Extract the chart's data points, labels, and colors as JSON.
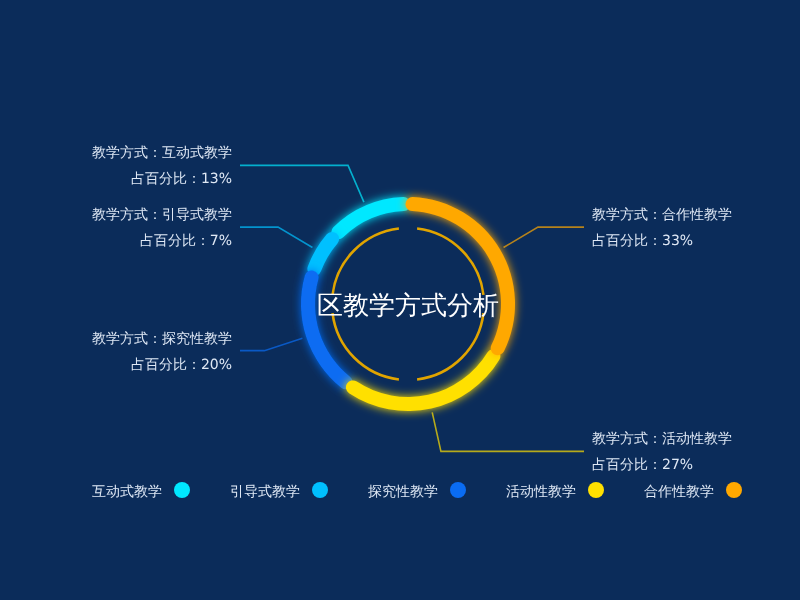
{
  "chart_data": {
    "type": "donut",
    "title": "区教学方式分析",
    "categories": [
      "互动式教学",
      "引导式教学",
      "探究性教学",
      "活动性教学",
      "合作性教学"
    ],
    "values": [
      13,
      7,
      20,
      27,
      33
    ],
    "colors": [
      "#00e8ff",
      "#00c0ff",
      "#0a6cf2",
      "#ffe000",
      "#ffa800"
    ],
    "annotations": [
      "教学方式：互动式教学",
      "教学方式：引导式教学",
      "教学方式：探究性教学",
      "教学方式：活动性教学",
      "教学方式：合作性教学"
    ],
    "value_labels": [
      "占百分比：13%",
      "占百分比：7%",
      "占百分比：20%",
      "占百分比：27%",
      "占百分比：33%"
    ],
    "legend": "bottom"
  }
}
